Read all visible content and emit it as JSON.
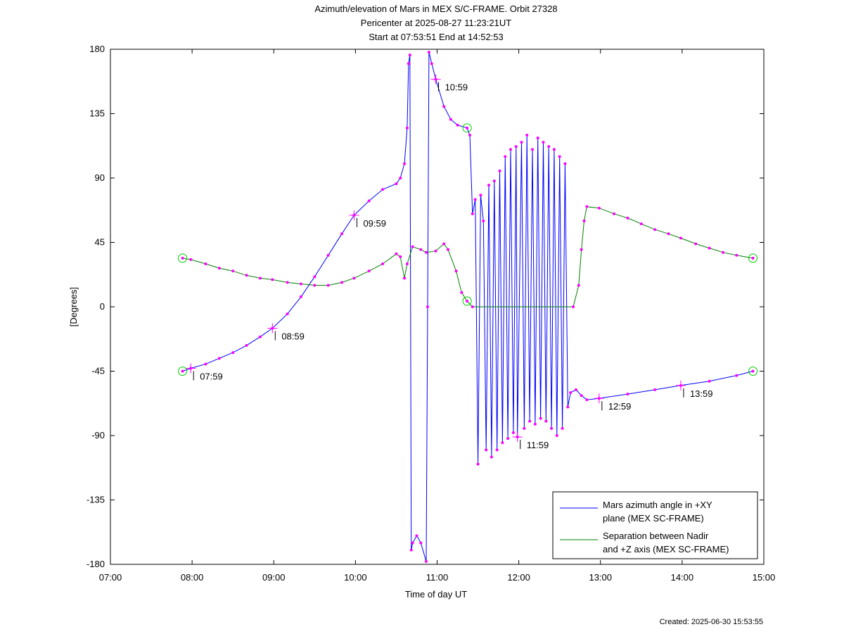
{
  "chart_data": {
    "type": "line",
    "title_lines": [
      "Azimuth/elevation of Mars in MEX S/C-FRAME.  Orbit 27328",
      "Pericenter at 2025-08-27 11:23:21UT",
      "Start at 07:53:51 End at 14:52:53"
    ],
    "xlabel": "Time of day UT",
    "ylabel": "[Degrees]",
    "xlim": [
      "07:00",
      "15:00"
    ],
    "x_ticks": [
      "07:00",
      "08:00",
      "09:00",
      "10:00",
      "11:00",
      "12:00",
      "13:00",
      "14:00",
      "15:00"
    ],
    "ylim": [
      -180,
      180
    ],
    "y_ticks": [
      "180",
      "135",
      "90",
      "45",
      "0",
      "-45",
      "-90",
      "-135",
      "-180"
    ],
    "legend_position": "bottom-right",
    "series": [
      {
        "name": "Mars azimuth angle in +XY plane (MEX SC-FRAME)",
        "legend_lines": [
          "Mars azimuth angle in +XY",
          "plane (MEX SC-FRAME)"
        ],
        "color": "#0000ff",
        "points": [
          [
            "07:53",
            -45
          ],
          [
            "07:59",
            -43
          ],
          [
            "08:10",
            -40
          ],
          [
            "08:20",
            -36
          ],
          [
            "08:30",
            -32
          ],
          [
            "08:40",
            -27
          ],
          [
            "08:50",
            -21
          ],
          [
            "08:59",
            -15
          ],
          [
            "09:10",
            -5
          ],
          [
            "09:20",
            7
          ],
          [
            "09:30",
            21
          ],
          [
            "09:40",
            36
          ],
          [
            "09:50",
            51
          ],
          [
            "09:59",
            64
          ],
          [
            "10:10",
            74
          ],
          [
            "10:20",
            82
          ],
          [
            "10:30",
            86
          ],
          [
            "10:33",
            90
          ],
          [
            "10:36",
            100
          ],
          [
            "10:38",
            125
          ],
          [
            "10:39",
            170
          ],
          [
            "10:40",
            176
          ],
          [
            "10:41",
            -170
          ],
          [
            "10:42",
            -165
          ],
          [
            "10:45",
            -160
          ],
          [
            "10:48",
            -165
          ],
          [
            "10:52",
            -178
          ],
          [
            "10:53",
            0
          ],
          [
            "10:54",
            178
          ],
          [
            "10:56",
            170
          ],
          [
            "10:59",
            159
          ],
          [
            "11:05",
            140
          ],
          [
            "11:10",
            131
          ],
          [
            "11:15",
            127
          ],
          [
            "11:22",
            125
          ],
          [
            "11:24",
            120
          ],
          [
            "11:26",
            65
          ],
          [
            "11:28",
            75
          ],
          [
            "11:30",
            -110
          ],
          [
            "11:32",
            78
          ],
          [
            "11:34",
            60
          ],
          [
            "11:36",
            -100
          ],
          [
            "11:38",
            85
          ],
          [
            "11:40",
            -105
          ],
          [
            "11:42",
            88
          ],
          [
            "11:44",
            -100
          ],
          [
            "11:46",
            95
          ],
          [
            "11:48",
            -95
          ],
          [
            "11:50",
            105
          ],
          [
            "11:52",
            -92
          ],
          [
            "11:54",
            110
          ],
          [
            "11:56",
            -88
          ],
          [
            "11:58",
            112
          ],
          [
            "11:59",
            -91
          ],
          [
            "12:02",
            115
          ],
          [
            "12:04",
            -85
          ],
          [
            "12:06",
            120
          ],
          [
            "12:08",
            -80
          ],
          [
            "12:10",
            110
          ],
          [
            "12:12",
            -82
          ],
          [
            "12:14",
            118
          ],
          [
            "12:16",
            -78
          ],
          [
            "12:18",
            115
          ],
          [
            "12:20",
            -80
          ],
          [
            "12:22",
            112
          ],
          [
            "12:24",
            -85
          ],
          [
            "12:26",
            110
          ],
          [
            "12:28",
            -90
          ],
          [
            "12:30",
            105
          ],
          [
            "12:32",
            -85
          ],
          [
            "12:34",
            100
          ],
          [
            "12:36",
            -70
          ],
          [
            "12:38",
            -60
          ],
          [
            "12:42",
            -58
          ],
          [
            "12:46",
            -62
          ],
          [
            "12:50",
            -65
          ],
          [
            "12:59",
            -64
          ],
          [
            "13:20",
            -61
          ],
          [
            "13:40",
            -58
          ],
          [
            "13:59",
            -55
          ],
          [
            "14:20",
            -52
          ],
          [
            "14:40",
            -48
          ],
          [
            "14:52",
            -45
          ]
        ],
        "labels": [
          {
            "t": "07:59",
            "text": "07:59"
          },
          {
            "t": "08:59",
            "text": "08:59"
          },
          {
            "t": "09:59",
            "text": "09:59"
          },
          {
            "t": "10:59",
            "text": "10:59"
          },
          {
            "t": "11:59",
            "text": "11:59"
          },
          {
            "t": "12:59",
            "text": "12:59"
          },
          {
            "t": "13:59",
            "text": "13:59"
          }
        ]
      },
      {
        "name": "Separation between Nadir and +Z axis (MEX SC-FRAME)",
        "legend_lines": [
          "Separation between Nadir",
          "and +Z axis (MEX SC-FRAME)"
        ],
        "color": "#008000",
        "points": [
          [
            "07:53",
            34
          ],
          [
            "07:59",
            33
          ],
          [
            "08:10",
            30
          ],
          [
            "08:20",
            27
          ],
          [
            "08:30",
            25
          ],
          [
            "08:40",
            22
          ],
          [
            "08:50",
            20
          ],
          [
            "08:59",
            19
          ],
          [
            "09:10",
            17
          ],
          [
            "09:20",
            16
          ],
          [
            "09:30",
            15
          ],
          [
            "09:40",
            15
          ],
          [
            "09:50",
            17
          ],
          [
            "09:59",
            20
          ],
          [
            "10:10",
            25
          ],
          [
            "10:20",
            30
          ],
          [
            "10:30",
            37
          ],
          [
            "10:33",
            35
          ],
          [
            "10:36",
            20
          ],
          [
            "10:38",
            30
          ],
          [
            "10:42",
            42
          ],
          [
            "10:48",
            40
          ],
          [
            "10:52",
            38
          ],
          [
            "10:59",
            39
          ],
          [
            "11:05",
            44
          ],
          [
            "11:08",
            40
          ],
          [
            "11:14",
            25
          ],
          [
            "11:18",
            10
          ],
          [
            "11:22",
            4
          ],
          [
            "11:26",
            0
          ],
          [
            "12:40",
            0
          ],
          [
            "12:44",
            15
          ],
          [
            "12:46",
            40
          ],
          [
            "12:48",
            60
          ],
          [
            "12:50",
            70
          ],
          [
            "12:59",
            69
          ],
          [
            "13:10",
            65
          ],
          [
            "13:20",
            62
          ],
          [
            "13:30",
            58
          ],
          [
            "13:40",
            54
          ],
          [
            "13:50",
            51
          ],
          [
            "13:59",
            48
          ],
          [
            "14:10",
            44
          ],
          [
            "14:20",
            41
          ],
          [
            "14:30",
            38
          ],
          [
            "14:40",
            36
          ],
          [
            "14:52",
            34
          ]
        ],
        "labels": []
      }
    ],
    "circle_markers": [
      {
        "t": "07:53",
        "value": -45
      },
      {
        "t": "07:53",
        "value": 34
      },
      {
        "t": "11:22",
        "value": 125
      },
      {
        "t": "11:22",
        "value": 4
      },
      {
        "t": "14:52",
        "value": -45
      },
      {
        "t": "14:52",
        "value": 34
      }
    ]
  },
  "footer": {
    "created": "Created: 2025-06-30 15:53:55"
  }
}
